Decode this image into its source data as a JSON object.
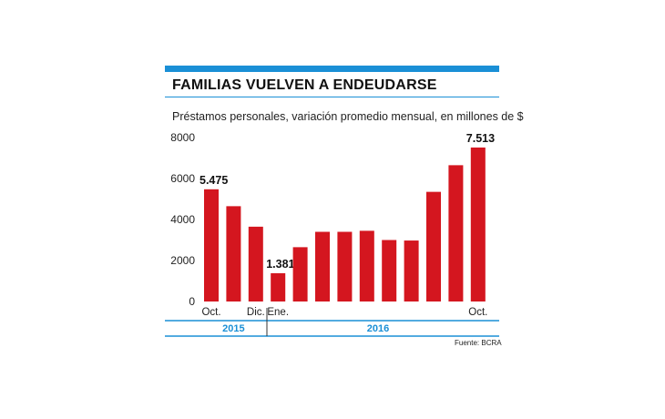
{
  "title": "FAMILIAS VUELVEN A ENDEUDARSE",
  "subtitle": "Préstamos personales, variación promedio mensual, en millones de $",
  "source": "Fuente: BCRA",
  "colors": {
    "bar": "#d4161f",
    "accent": "#1a8fd6"
  },
  "chart_data": {
    "type": "bar",
    "title": "FAMILIAS VUELVEN A ENDEUDARSE",
    "subtitle": "Préstamos personales, variación promedio mensual, en millones de $",
    "ylim": [
      0,
      8000
    ],
    "yticks": [
      "0",
      "2000",
      "4000",
      "6000",
      "8000"
    ],
    "ytick_values": [
      0,
      2000,
      4000,
      6000,
      8000
    ],
    "categories": [
      "Oct.",
      "",
      "Dic.",
      "Ene.",
      "",
      "",
      "",
      "",
      "",
      "",
      "",
      "",
      "Oct."
    ],
    "values": [
      5475,
      4650,
      3650,
      1381,
      2650,
      3400,
      3400,
      3450,
      3000,
      2975,
      5350,
      6650,
      7513
    ],
    "data_labels": [
      "5.475",
      "",
      "",
      "1.381",
      "",
      "",
      "",
      "",
      "",
      "",
      "",
      "",
      "7.513"
    ],
    "groups": [
      {
        "label": "2015",
        "start": 0,
        "end": 2
      },
      {
        "label": "2016",
        "start": 3,
        "end": 12
      }
    ]
  }
}
